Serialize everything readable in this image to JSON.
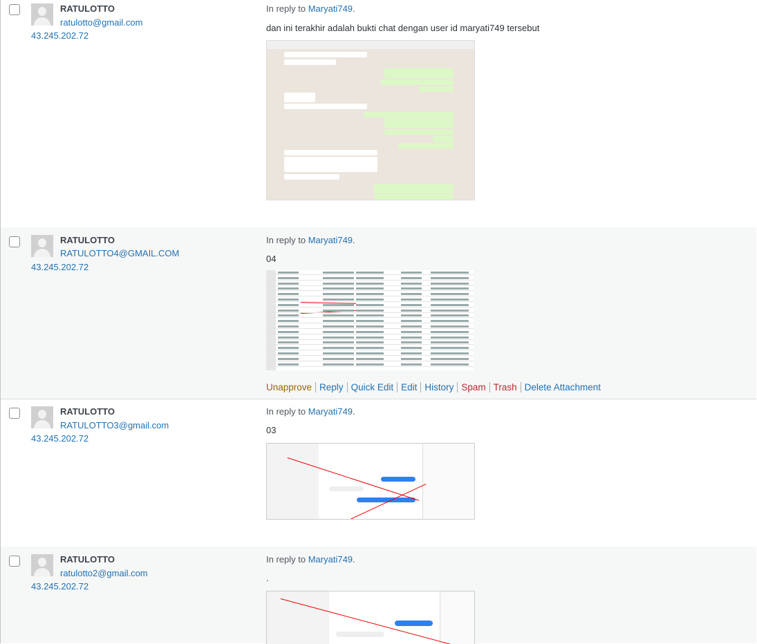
{
  "comments": [
    {
      "author": "RATULOTTO",
      "email": "ratulotto@gmail.com",
      "ip": "43.245.202.72",
      "reply_label": "In reply to",
      "reply_to": "Maryati749",
      "reply_end": ".",
      "text": "dan ini terakhir adalah bukti chat dengan user id maryati749 tersebut"
    },
    {
      "author": "RATULOTTO",
      "email": "RATULOTTO4@GMAIL.COM",
      "ip": "43.245.202.72",
      "reply_label": "In reply to",
      "reply_to": "Maryati749",
      "reply_end": ".",
      "text": "04",
      "actions": [
        "Unapprove",
        "Reply",
        "Quick Edit",
        "Edit",
        "History",
        "Spam",
        "Trash",
        "Delete Attachment"
      ]
    },
    {
      "author": "RATULOTTO",
      "email": "RATULOTTO3@gmail.com",
      "ip": "43.245.202.72",
      "reply_label": "In reply to",
      "reply_to": "Maryati749",
      "reply_end": ".",
      "text": "03"
    },
    {
      "author": "RATULOTTO",
      "email": "ratulotto2@gmail.com",
      "ip": "43.245.202.72",
      "reply_label": "In reply to",
      "reply_to": "Maryati749",
      "reply_end": ".",
      "text": "."
    }
  ]
}
